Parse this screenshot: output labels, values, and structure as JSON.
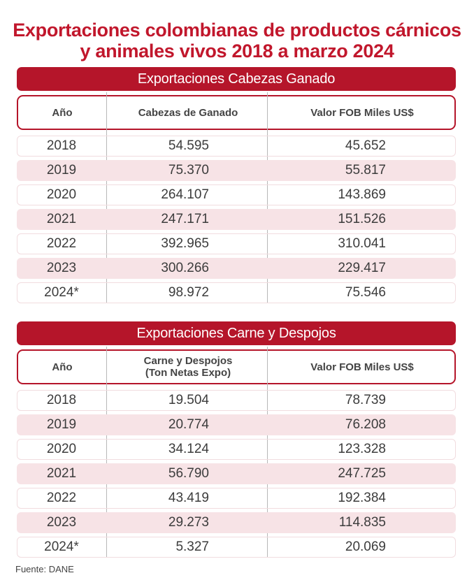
{
  "title": {
    "line1": "Exportaciones colombianas de productos cárnicos",
    "line2": "y animales vivos 2018 a marzo 2024"
  },
  "tables": [
    {
      "banner": "Exportaciones Cabezas Ganado",
      "headers": {
        "year": "Año",
        "col_a": "Cabezas de Ganado",
        "col_b": "Valor FOB Miles US$"
      },
      "rows": [
        {
          "year": "2018",
          "a": "54.595",
          "b": "45.652"
        },
        {
          "year": "2019",
          "a": "75.370",
          "b": "55.817"
        },
        {
          "year": "2020",
          "a": "264.107",
          "b": "143.869"
        },
        {
          "year": "2021",
          "a": "247.171",
          "b": "151.526"
        },
        {
          "year": "2022",
          "a": "392.965",
          "b": "310.041"
        },
        {
          "year": "2023",
          "a": "300.266",
          "b": "229.417"
        },
        {
          "year": "2024*",
          "a": "98.972",
          "b": "75.546"
        }
      ]
    },
    {
      "banner": "Exportaciones Carne y Despojos",
      "headers": {
        "year": "Año",
        "col_a_line1": "Carne y Despojos",
        "col_a_line2": "(Ton Netas Expo)",
        "col_b": "Valor FOB Miles US$"
      },
      "rows": [
        {
          "year": "2018",
          "a": "19.504",
          "b": "78.739"
        },
        {
          "year": "2019",
          "a": "20.774",
          "b": "76.208"
        },
        {
          "year": "2020",
          "a": "34.124",
          "b": "123.328"
        },
        {
          "year": "2021",
          "a": "56.790",
          "b": "247.725"
        },
        {
          "year": "2022",
          "a": "43.419",
          "b": "192.384"
        },
        {
          "year": "2023",
          "a": "29.273",
          "b": "114.835"
        },
        {
          "year": "2024*",
          "a": "5.327",
          "b": "20.069"
        }
      ]
    }
  ],
  "footer": "Fuente: DANE"
}
